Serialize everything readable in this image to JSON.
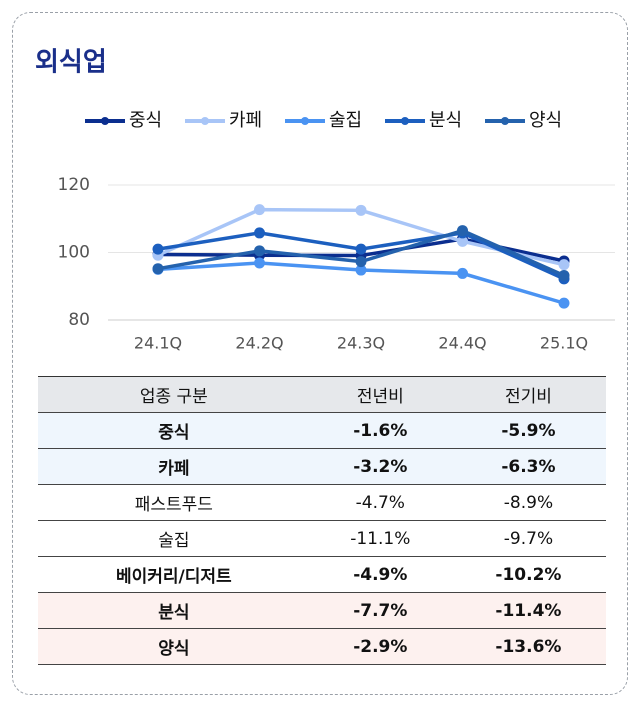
{
  "chart_data": {
    "type": "line",
    "title": "외식업",
    "categories": [
      "24.1Q",
      "24.2Q",
      "24.3Q",
      "24.4Q",
      "25.1Q"
    ],
    "series": [
      {
        "name": "중식",
        "color": "#0b2e8f",
        "values": [
          99.4,
          99.2,
          99.1,
          104,
          97.5
        ]
      },
      {
        "name": "카페",
        "color": "#a8c5f7",
        "values": [
          99.2,
          112.7,
          112.5,
          103.3,
          96.4
        ]
      },
      {
        "name": "술집",
        "color": "#4a93f2",
        "values": [
          95,
          96.9,
          94.8,
          93.8,
          85
        ]
      },
      {
        "name": "분식",
        "color": "#1c5fbf",
        "values": [
          101,
          105.8,
          101,
          105.8,
          92.2
        ]
      },
      {
        "name": "양식",
        "color": "#2462ad",
        "values": [
          95.2,
          100.5,
          97.3,
          106.5,
          93.2
        ]
      }
    ],
    "ylim": [
      80,
      120
    ],
    "yticks": [
      80,
      100,
      120
    ],
    "grid": true,
    "legend": "top"
  },
  "table": {
    "header": [
      "업종 구분",
      "전년비",
      "전기비"
    ],
    "rows": [
      [
        "중식",
        "-1.6%",
        "-5.9%"
      ],
      [
        "카페",
        "-3.2%",
        "-6.3%"
      ],
      [
        "패스트푸드",
        "-4.7%",
        "-8.9%"
      ],
      [
        "술집",
        "-11.1%",
        "-9.7%"
      ],
      [
        "베이커리/디저트",
        "-4.9%",
        "-10.2%"
      ],
      [
        "분식",
        "-7.7%",
        "-11.4%"
      ],
      [
        "양식",
        "-2.9%",
        "-13.6%"
      ]
    ]
  }
}
